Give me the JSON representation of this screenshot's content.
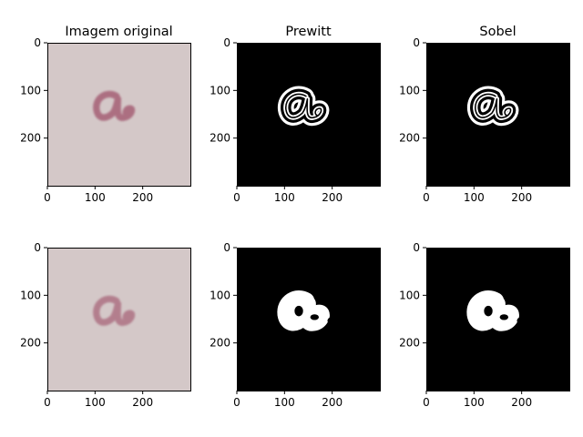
{
  "colors": {
    "background": "#ffffff",
    "photo_bg": "#d4c8c8",
    "ink": "#a8667a",
    "edge_bg": "#000000",
    "edge_fg": "#ffffff"
  },
  "panels": [
    {
      "id": "original-top",
      "title": "Imagem original",
      "kind": "photo",
      "row": 0
    },
    {
      "id": "prewitt-top",
      "title": "Prewitt",
      "kind": "edges-outline",
      "row": 0
    },
    {
      "id": "sobel-top",
      "title": "Sobel",
      "kind": "edges-outline",
      "row": 0
    },
    {
      "id": "original-bottom",
      "title": "",
      "kind": "photo",
      "row": 1
    },
    {
      "id": "prewitt-bottom",
      "title": "",
      "kind": "edges-filled",
      "row": 1
    },
    {
      "id": "sobel-bottom",
      "title": "",
      "kind": "edges-filled",
      "row": 1
    }
  ],
  "axes": {
    "x_ticks": [
      "0",
      "100",
      "200"
    ],
    "y_ticks": [
      "0",
      "100",
      "200"
    ],
    "x_range": [
      0,
      300
    ],
    "y_range": [
      0,
      300
    ]
  }
}
